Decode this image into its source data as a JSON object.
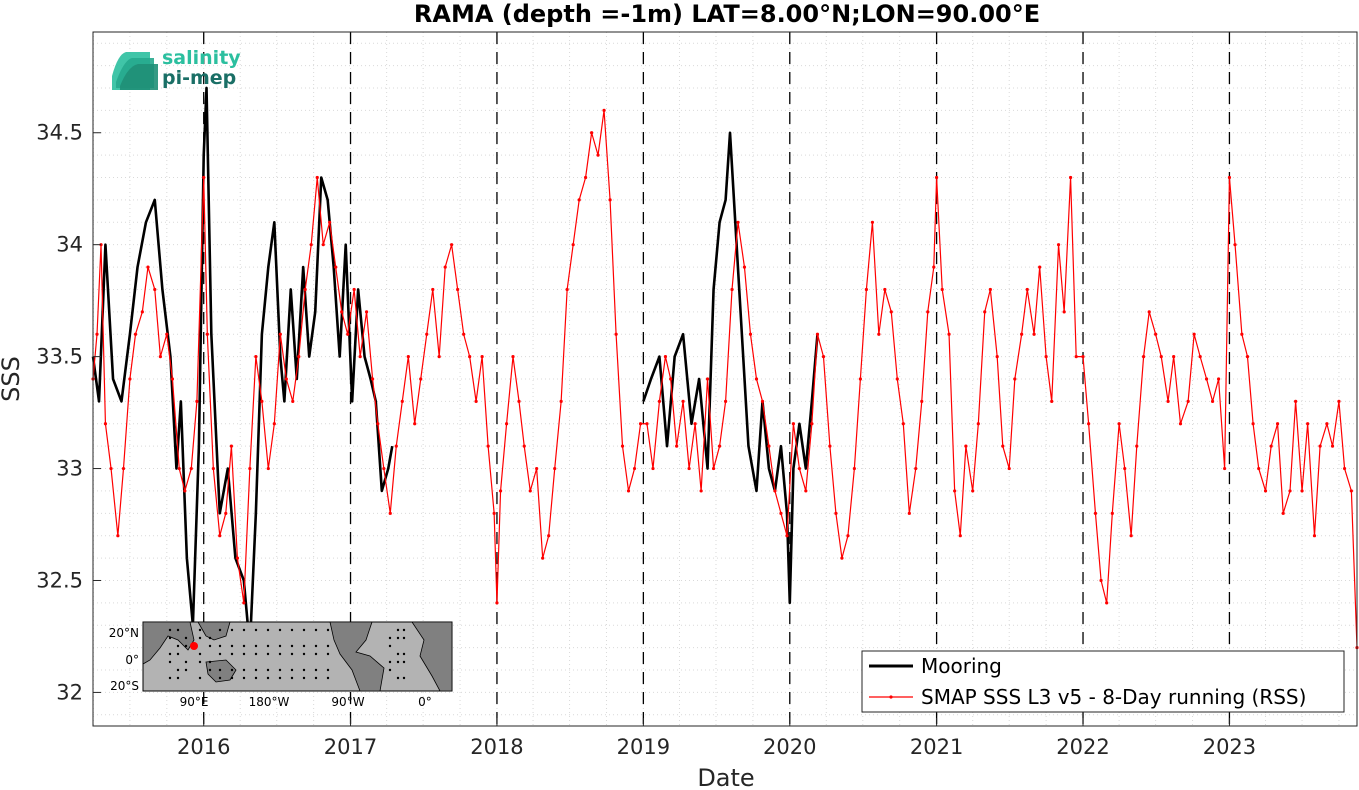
{
  "chart_data": {
    "type": "line",
    "title": "RAMA (depth =-1m) LAT=8.00°N;LON=90.00°E",
    "xlabel": "Date",
    "ylabel": "SSS",
    "xlim": [
      "2015-03-31",
      "2023-11-15"
    ],
    "ylim": [
      31.85,
      34.95
    ],
    "x_ticks": [
      "2016",
      "2017",
      "2018",
      "2019",
      "2020",
      "2021",
      "2022",
      "2023"
    ],
    "y_ticks": [
      32,
      32.5,
      33,
      33.5,
      34,
      34.5
    ],
    "grid": "dotted minor grid",
    "year_markers": [
      "2016-01-01",
      "2017-01-01",
      "2018-01-01",
      "2019-01-01",
      "2020-01-01",
      "2021-01-01",
      "2022-01-01",
      "2023-01-01"
    ],
    "legend_position": "bottom-right",
    "colors": {
      "mooring": "#000000",
      "smap": "#ff0000"
    },
    "series": [
      {
        "name": "Mooring",
        "color": "#000000",
        "x": [
          "2015-03-31",
          "2015-04-15",
          "2015-05-01",
          "2015-05-20",
          "2015-06-10",
          "2015-07-01",
          "2015-07-20",
          "2015-08-10",
          "2015-09-01",
          "2015-09-20",
          "2015-10-10",
          "2015-10-25",
          "2015-11-05",
          "2015-11-20",
          "2015-12-05",
          "2015-12-20",
          "2016-01-01",
          "2016-01-08",
          "2016-01-20",
          "2016-02-10",
          "2016-03-01",
          "2016-03-20",
          "2016-04-10",
          "2016-04-25",
          "2016-05-10",
          "2016-05-25",
          "2016-06-10",
          "2016-06-25",
          "2016-07-10",
          "2016-07-20",
          "2016-08-05",
          "2016-08-20",
          "2016-09-05",
          "2016-09-20",
          "2016-10-05",
          "2016-10-20",
          "2016-11-05",
          "2016-11-20",
          "2016-12-05",
          "2016-12-20",
          "2017-01-05",
          "2017-01-20",
          "2017-02-05",
          "2017-02-20",
          "2017-03-05",
          "2017-03-20",
          "2017-04-05",
          "2017-04-15",
          "2019-01-01",
          "2019-01-20",
          "2019-02-10",
          "2019-03-01",
          "2019-03-20",
          "2019-04-10",
          "2019-05-01",
          "2019-05-20",
          "2019-06-10",
          "2019-06-25",
          "2019-07-10",
          "2019-07-25",
          "2019-08-05",
          "2019-09-20",
          "2019-10-10",
          "2019-10-25",
          "2019-11-10",
          "2019-11-25",
          "2019-12-10",
          "2019-12-25",
          "2020-01-01",
          "2020-01-10",
          "2020-01-25",
          "2020-02-10",
          "2020-02-25",
          "2020-03-10"
        ],
        "values": [
          33.5,
          33.3,
          34.0,
          33.4,
          33.3,
          33.6,
          33.9,
          34.1,
          34.2,
          33.8,
          33.5,
          33.0,
          33.3,
          32.6,
          32.3,
          33.1,
          34.4,
          34.7,
          33.6,
          32.8,
          33.0,
          32.6,
          32.5,
          32.2,
          32.8,
          33.6,
          33.9,
          34.1,
          33.5,
          33.3,
          33.8,
          33.4,
          33.9,
          33.5,
          33.7,
          34.3,
          34.2,
          33.9,
          33.5,
          34.0,
          33.3,
          33.8,
          33.5,
          33.4,
          33.3,
          32.9,
          33.0,
          33.1,
          33.3,
          33.4,
          33.5,
          33.1,
          33.5,
          33.6,
          33.2,
          33.4,
          33.0,
          33.8,
          34.1,
          34.2,
          34.5,
          33.1,
          32.9,
          33.3,
          33.0,
          32.9,
          33.1,
          32.8,
          32.4,
          33.0,
          33.2,
          33.0,
          33.3,
          33.6
        ]
      },
      {
        "name": "SMAP SSS L3 v5 - 8-Day running (RSS)",
        "color": "#ff0000",
        "x": [
          "2015-03-31",
          "2015-04-10",
          "2015-04-20",
          "2015-05-01",
          "2015-05-15",
          "2015-06-01",
          "2015-06-15",
          "2015-07-01",
          "2015-07-15",
          "2015-08-01",
          "2015-08-15",
          "2015-09-01",
          "2015-09-15",
          "2015-10-01",
          "2015-10-15",
          "2015-11-01",
          "2015-11-15",
          "2015-12-01",
          "2015-12-15",
          "2016-01-01",
          "2016-01-10",
          "2016-01-25",
          "2016-02-10",
          "2016-02-25",
          "2016-03-10",
          "2016-03-25",
          "2016-04-10",
          "2016-04-25",
          "2016-05-10",
          "2016-05-25",
          "2016-06-10",
          "2016-06-25",
          "2016-07-10",
          "2016-07-25",
          "2016-08-10",
          "2016-08-25",
          "2016-09-10",
          "2016-09-25",
          "2016-10-10",
          "2016-10-25",
          "2016-11-10",
          "2016-11-25",
          "2016-12-10",
          "2016-12-25",
          "2017-01-10",
          "2017-01-25",
          "2017-02-10",
          "2017-02-25",
          "2017-03-10",
          "2017-03-25",
          "2017-04-10",
          "2017-04-25",
          "2017-05-10",
          "2017-05-25",
          "2017-06-10",
          "2017-06-25",
          "2017-07-10",
          "2017-07-25",
          "2017-08-10",
          "2017-08-25",
          "2017-09-10",
          "2017-09-25",
          "2017-10-10",
          "2017-10-25",
          "2017-11-10",
          "2017-11-25",
          "2017-12-10",
          "2017-12-25",
          "2018-01-01",
          "2018-01-10",
          "2018-01-25",
          "2018-02-10",
          "2018-02-25",
          "2018-03-10",
          "2018-03-25",
          "2018-04-10",
          "2018-04-25",
          "2018-05-10",
          "2018-05-25",
          "2018-06-10",
          "2018-06-25",
          "2018-07-10",
          "2018-07-25",
          "2018-08-10",
          "2018-08-25",
          "2018-09-10",
          "2018-09-25",
          "2018-10-10",
          "2018-10-25",
          "2018-11-10",
          "2018-11-25",
          "2018-12-10",
          "2018-12-25",
          "2019-01-10",
          "2019-01-25",
          "2019-02-10",
          "2019-02-25",
          "2019-03-10",
          "2019-03-25",
          "2019-04-10",
          "2019-04-25",
          "2019-05-10",
          "2019-05-25",
          "2019-06-10",
          "2019-06-25",
          "2019-07-10",
          "2019-07-25",
          "2019-08-10",
          "2019-08-25",
          "2019-09-10",
          "2019-09-25",
          "2019-10-10",
          "2019-10-25",
          "2019-11-10",
          "2019-11-25",
          "2019-12-10",
          "2019-12-25",
          "2020-01-10",
          "2020-01-25",
          "2020-02-10",
          "2020-02-25",
          "2020-03-10",
          "2020-03-25",
          "2020-04-10",
          "2020-04-25",
          "2020-05-10",
          "2020-05-25",
          "2020-06-10",
          "2020-06-25",
          "2020-07-10",
          "2020-07-25",
          "2020-08-10",
          "2020-08-25",
          "2020-09-10",
          "2020-09-25",
          "2020-10-10",
          "2020-10-25",
          "2020-11-10",
          "2020-11-25",
          "2020-12-10",
          "2020-12-25",
          "2021-01-01",
          "2021-01-15",
          "2021-02-01",
          "2021-02-15",
          "2021-03-01",
          "2021-03-15",
          "2021-04-01",
          "2021-04-15",
          "2021-05-01",
          "2021-05-15",
          "2021-06-01",
          "2021-06-15",
          "2021-07-01",
          "2021-07-15",
          "2021-08-01",
          "2021-08-15",
          "2021-09-01",
          "2021-09-15",
          "2021-10-01",
          "2021-10-15",
          "2021-11-01",
          "2021-11-15",
          "2021-12-01",
          "2021-12-15",
          "2022-01-01",
          "2022-01-15",
          "2022-02-01",
          "2022-02-15",
          "2022-03-01",
          "2022-03-15",
          "2022-04-01",
          "2022-04-15",
          "2022-05-01",
          "2022-05-15",
          "2022-06-01",
          "2022-06-15",
          "2022-07-01",
          "2022-07-15",
          "2022-08-01",
          "2022-08-15",
          "2022-09-01",
          "2022-09-20",
          "2022-10-05",
          "2022-10-20",
          "2022-11-05",
          "2022-11-20",
          "2022-12-05",
          "2022-12-20",
          "2023-01-01",
          "2023-01-15",
          "2023-02-01",
          "2023-02-15",
          "2023-03-01",
          "2023-03-15",
          "2023-04-01",
          "2023-04-15",
          "2023-05-01",
          "2023-05-15",
          "2023-06-01",
          "2023-06-15",
          "2023-07-01",
          "2023-07-15",
          "2023-08-01",
          "2023-08-15",
          "2023-09-01",
          "2023-09-15",
          "2023-10-01",
          "2023-10-15",
          "2023-11-01",
          "2023-11-15"
        ],
        "values": [
          33.4,
          33.6,
          34.0,
          33.2,
          33.0,
          32.7,
          33.0,
          33.4,
          33.6,
          33.7,
          33.9,
          33.8,
          33.5,
          33.6,
          33.4,
          33.0,
          32.9,
          33.0,
          33.3,
          34.3,
          33.6,
          33.0,
          32.7,
          32.8,
          33.1,
          32.6,
          32.4,
          33.0,
          33.5,
          33.3,
          33.0,
          33.2,
          33.6,
          33.4,
          33.3,
          33.5,
          33.8,
          34.0,
          34.3,
          34.0,
          34.1,
          33.9,
          33.7,
          33.6,
          33.8,
          33.5,
          33.7,
          33.4,
          33.2,
          33.0,
          32.8,
          33.1,
          33.3,
          33.5,
          33.2,
          33.4,
          33.6,
          33.8,
          33.5,
          33.9,
          34.0,
          33.8,
          33.6,
          33.5,
          33.3,
          33.5,
          33.1,
          32.8,
          32.4,
          32.9,
          33.2,
          33.5,
          33.3,
          33.1,
          32.9,
          33.0,
          32.6,
          32.7,
          33.0,
          33.3,
          33.8,
          34.0,
          34.2,
          34.3,
          34.5,
          34.4,
          34.6,
          34.2,
          33.6,
          33.1,
          32.9,
          33.0,
          33.2,
          33.2,
          33.0,
          33.3,
          33.5,
          33.4,
          33.1,
          33.3,
          33.0,
          33.2,
          32.9,
          33.4,
          33.0,
          33.1,
          33.3,
          33.8,
          34.1,
          33.9,
          33.6,
          33.4,
          33.3,
          33.1,
          32.9,
          32.8,
          32.7,
          33.2,
          33.0,
          32.9,
          33.2,
          33.6,
          33.5,
          33.1,
          32.8,
          32.6,
          32.7,
          33.0,
          33.4,
          33.8,
          34.1,
          33.6,
          33.8,
          33.7,
          33.4,
          33.2,
          32.8,
          33.0,
          33.3,
          33.7,
          33.9,
          34.3,
          33.8,
          33.6,
          32.9,
          32.7,
          33.1,
          32.9,
          33.2,
          33.7,
          33.8,
          33.5,
          33.1,
          33.0,
          33.4,
          33.6,
          33.8,
          33.6,
          33.9,
          33.5,
          33.3,
          34.0,
          33.7,
          34.3,
          33.5,
          33.5,
          33.2,
          32.8,
          32.5,
          32.4,
          32.8,
          33.2,
          33.0,
          32.7,
          33.1,
          33.5,
          33.7,
          33.6,
          33.5,
          33.3,
          33.5,
          33.2,
          33.3,
          33.6,
          33.5,
          33.4,
          33.3,
          33.4,
          33.0,
          34.3,
          34.0,
          33.6,
          33.5,
          33.2,
          33.0,
          32.9,
          33.1,
          33.2,
          32.8,
          32.9,
          33.3,
          32.9,
          33.2,
          32.7,
          33.1,
          33.2,
          33.1,
          33.3,
          33.0,
          32.9,
          32.2
        ]
      }
    ]
  },
  "logo": {
    "line1": "salinity",
    "line2": "pi-mep"
  },
  "inset_map": {
    "y_labels": [
      "20°N",
      "0°",
      "20°S"
    ],
    "x_labels": [
      "90°E",
      "180°W",
      "90°W",
      "0°"
    ],
    "marker_color": "#ff0000",
    "land_color": "#808080",
    "ocean_color": "#b3b3b3"
  },
  "legend": {
    "entries": [
      "Mooring",
      "SMAP SSS L3 v5 - 8-Day running (RSS)"
    ]
  }
}
